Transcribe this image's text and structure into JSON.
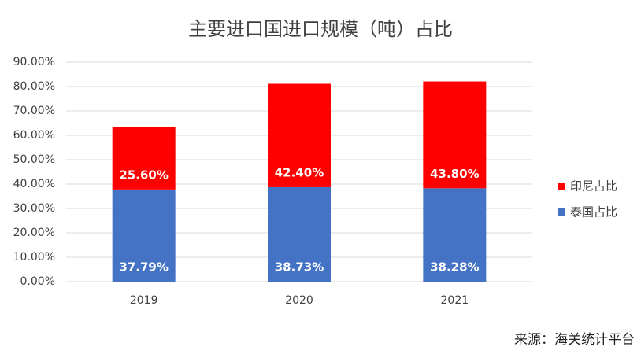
{
  "chart_data": {
    "type": "stacked_bar",
    "title": "主要进口国进口规模（吨）占比",
    "categories": [
      "2019",
      "2020",
      "2021"
    ],
    "series": [
      {
        "name": "泰国占比",
        "color": "#4472c4",
        "values": [
          37.79,
          38.73,
          38.28
        ],
        "value_labels": [
          "37.79%",
          "38.73%",
          "38.28%"
        ]
      },
      {
        "name": "印尼占比",
        "color": "#ff0000",
        "values": [
          25.6,
          42.4,
          43.8
        ],
        "value_labels": [
          "25.60%",
          "42.40%",
          "43.80%"
        ]
      }
    ],
    "ylim": [
      0,
      90
    ],
    "yticks": [
      {
        "value": 0,
        "label": "0.00%"
      },
      {
        "value": 10,
        "label": "10.00%"
      },
      {
        "value": 20,
        "label": "20.00%"
      },
      {
        "value": 30,
        "label": "30.00%"
      },
      {
        "value": 40,
        "label": "40.00%"
      },
      {
        "value": 50,
        "label": "50.00%"
      },
      {
        "value": 60,
        "label": "60.00%"
      },
      {
        "value": 70,
        "label": "70.00%"
      },
      {
        "value": 80,
        "label": "80.00%"
      },
      {
        "value": 90,
        "label": "90.00%"
      }
    ],
    "grid": true,
    "legend": "right",
    "source": "来源：海关统计平台"
  }
}
